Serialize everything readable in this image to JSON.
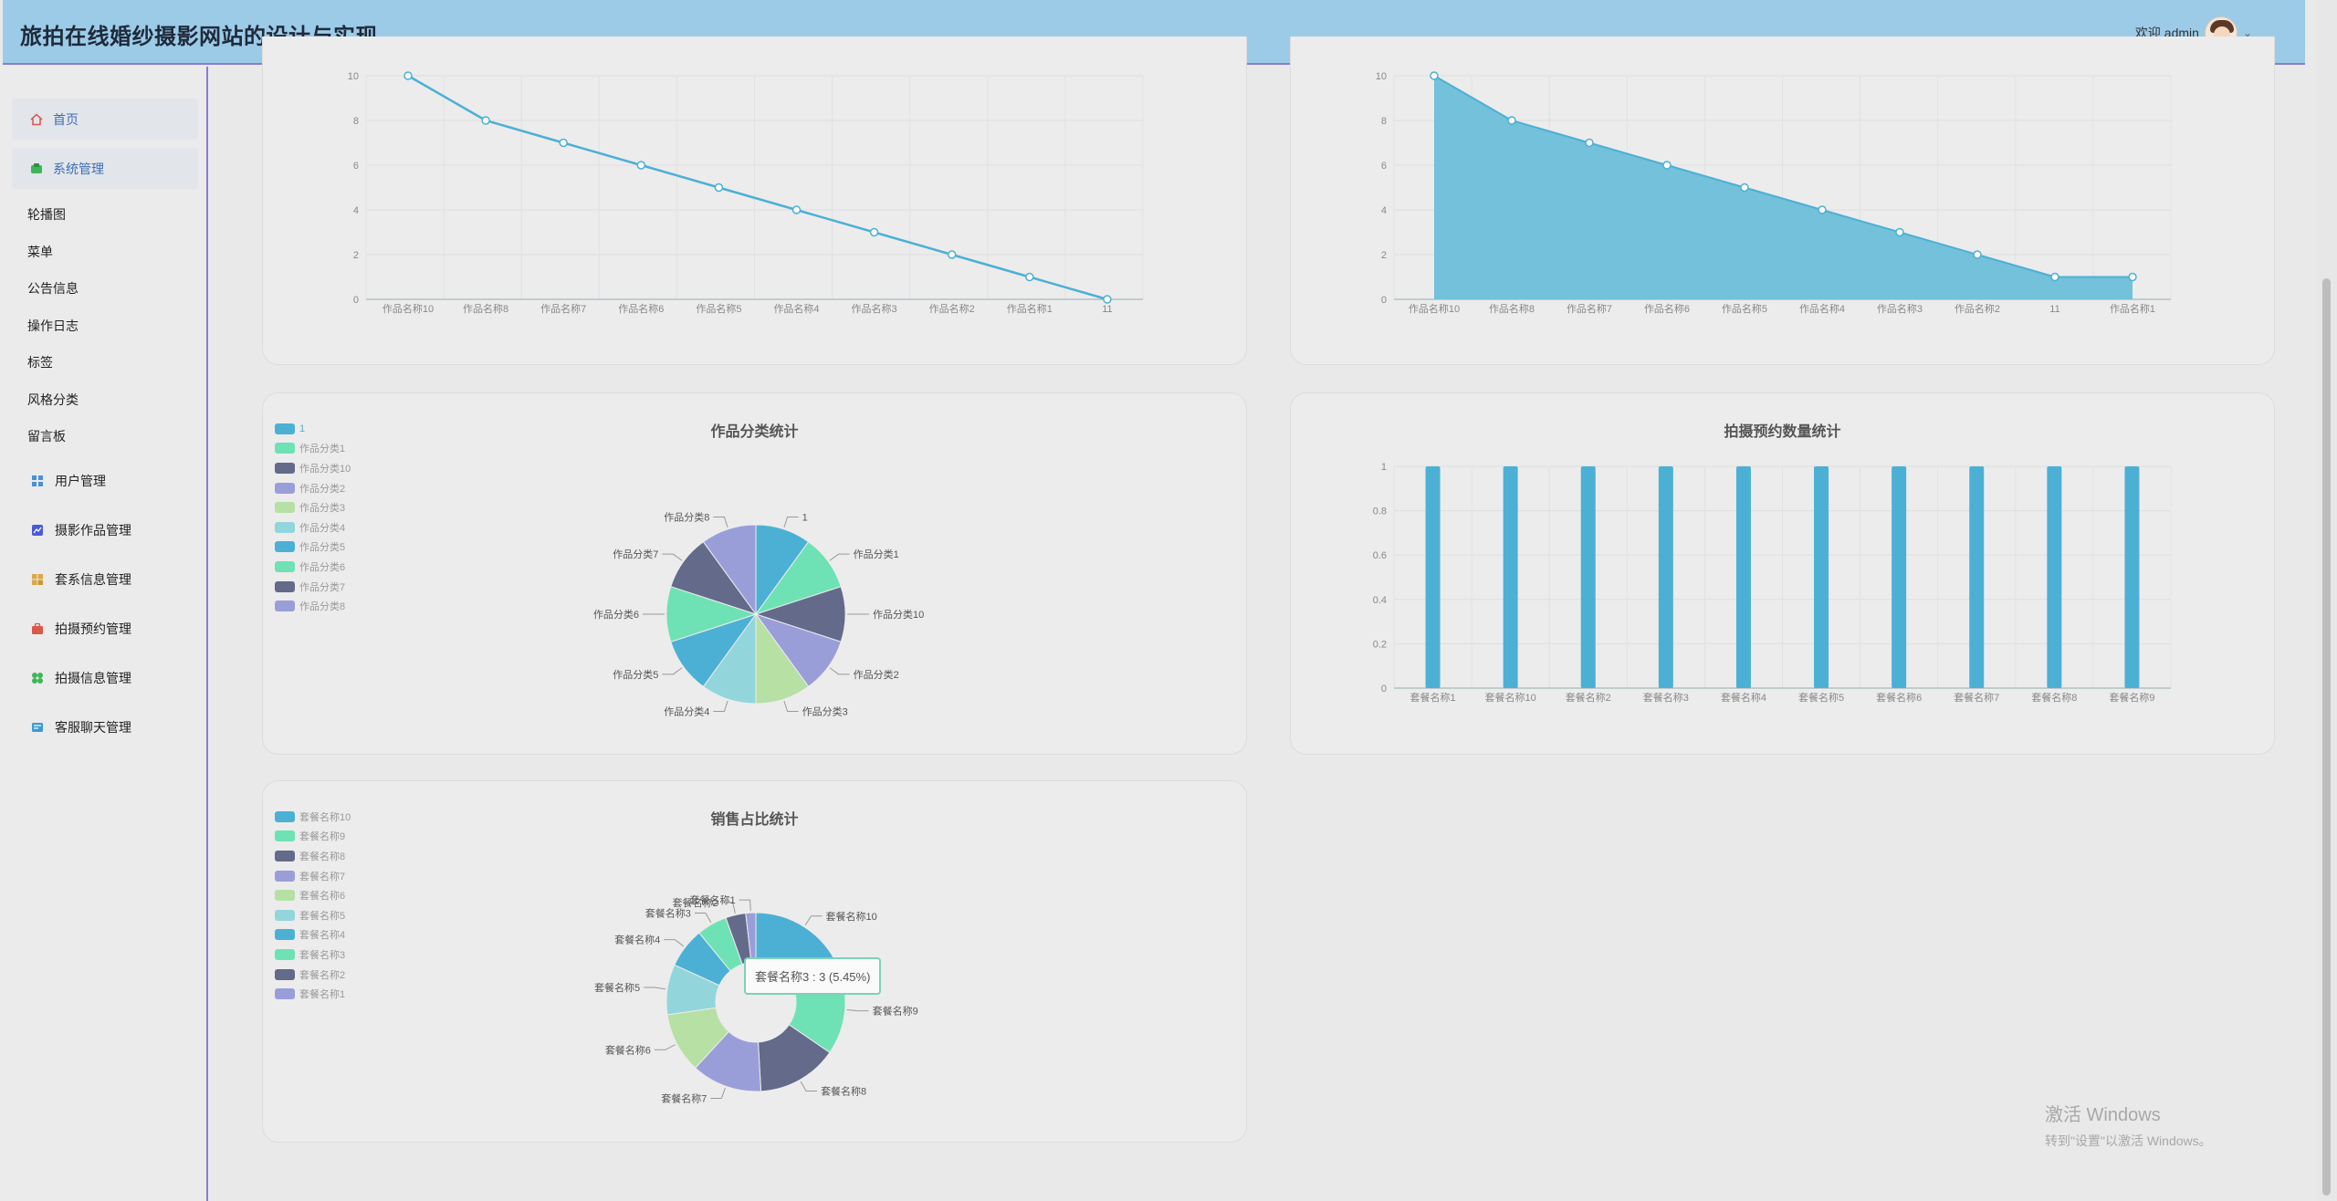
{
  "header": {
    "site_title": "旅拍在线婚纱摄影网站的设计与实现",
    "welcome": "欢迎 admin",
    "caret": "⌄"
  },
  "sidebar": {
    "home": "首页",
    "system": "系统管理",
    "system_items": [
      "轮播图",
      "菜单",
      "公告信息",
      "操作日志",
      "标签",
      "风格分类",
      "留言板"
    ],
    "groups": [
      {
        "label": "用户管理",
        "icon": "user-grid-icon",
        "color": "#4a90d9"
      },
      {
        "label": "摄影作品管理",
        "icon": "photo-icon",
        "color": "#4a5ad9"
      },
      {
        "label": "套系信息管理",
        "icon": "package-icon",
        "color": "#d9a84a"
      },
      {
        "label": "拍摄预约管理",
        "icon": "briefcase-icon",
        "color": "#d9584a"
      },
      {
        "label": "拍摄信息管理",
        "icon": "clover-icon",
        "color": "#3fb55a"
      },
      {
        "label": "客服聊天管理",
        "icon": "chat-icon",
        "color": "#3a9ad9"
      }
    ]
  },
  "colors": {
    "blue": "#4cb0d4",
    "mint": "#6ee2b4",
    "slate": "#636a8a",
    "lavender": "#9a9ed8",
    "lightgreen": "#b6e0a4",
    "lightcyan": "#92d6db"
  },
  "chart_data": [
    {
      "type": "line",
      "categories": [
        "作品名称10",
        "作品名称8",
        "作品名称7",
        "作品名称6",
        "作品名称5",
        "作品名称4",
        "作品名称3",
        "作品名称2",
        "作品名称1",
        "11"
      ],
      "values": [
        10,
        8,
        7,
        6,
        5,
        4,
        3,
        2,
        1,
        0
      ],
      "ylim": [
        0,
        10
      ],
      "yticks": [
        "0",
        "2",
        "4",
        "6",
        "8",
        "10"
      ],
      "grid": true
    },
    {
      "type": "area",
      "categories": [
        "作品名称10",
        "作品名称8",
        "作品名称7",
        "作品名称6",
        "作品名称5",
        "作品名称4",
        "作品名称3",
        "作品名称2",
        "11",
        "作品名称1"
      ],
      "values": [
        10,
        8,
        7,
        6,
        5,
        4,
        3,
        2,
        1,
        1
      ],
      "ylim": [
        0,
        10
      ],
      "yticks": [
        "0",
        "2",
        "4",
        "6",
        "8",
        "10"
      ],
      "grid": true
    },
    {
      "type": "pie",
      "title": "作品分类统计",
      "legend_placement": "top-left",
      "slices": [
        {
          "label": "1",
          "value": 1
        },
        {
          "label": "作品分类1",
          "value": 1
        },
        {
          "label": "作品分类10",
          "value": 1
        },
        {
          "label": "作品分类2",
          "value": 1
        },
        {
          "label": "作品分类3",
          "value": 1
        },
        {
          "label": "作品分类4",
          "value": 1
        },
        {
          "label": "作品分类5",
          "value": 1
        },
        {
          "label": "作品分类6",
          "value": 1
        },
        {
          "label": "作品分类7",
          "value": 1
        },
        {
          "label": "作品分类8",
          "value": 1
        }
      ]
    },
    {
      "type": "bar",
      "title": "拍摄预约数量统计",
      "categories": [
        "套餐名称1",
        "套餐名称10",
        "套餐名称2",
        "套餐名称3",
        "套餐名称4",
        "套餐名称5",
        "套餐名称6",
        "套餐名称7",
        "套餐名称8",
        "套餐名称9"
      ],
      "values": [
        1,
        1,
        1,
        1,
        1,
        1,
        1,
        1,
        1,
        1
      ],
      "ylim": [
        0,
        1
      ],
      "yticks": [
        "0",
        "0.2",
        "0.4",
        "0.6",
        "0.8",
        "1"
      ],
      "grid": true
    },
    {
      "type": "pie",
      "title": "销售占比统计",
      "donut": true,
      "legend_placement": "top-left",
      "slices": [
        {
          "label": "套餐名称10",
          "value": 10
        },
        {
          "label": "套餐名称9",
          "value": 9
        },
        {
          "label": "套餐名称8",
          "value": 8
        },
        {
          "label": "套餐名称7",
          "value": 7
        },
        {
          "label": "套餐名称6",
          "value": 6
        },
        {
          "label": "套餐名称5",
          "value": 5
        },
        {
          "label": "套餐名称4",
          "value": 4
        },
        {
          "label": "套餐名称3",
          "value": 3
        },
        {
          "label": "套餐名称2",
          "value": 2
        },
        {
          "label": "套餐名称1",
          "value": 1
        }
      ],
      "tooltip": "套餐名称3 : 3 (5.45%)"
    }
  ],
  "watermark": {
    "line1": "激活 Windows",
    "line2": "转到\"设置\"以激活 Windows。"
  }
}
